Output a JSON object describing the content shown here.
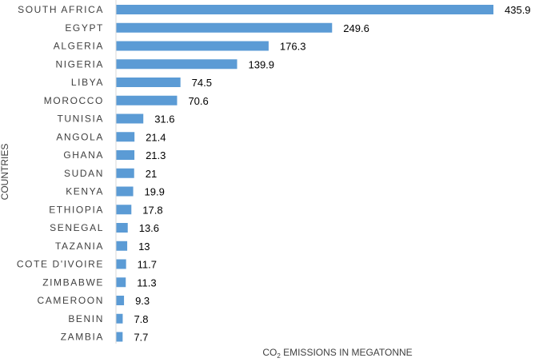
{
  "chart_data": {
    "type": "bar",
    "orientation": "horizontal",
    "categories": [
      "SOUTH AFRICA",
      "EGYPT",
      "ALGERIA",
      "NIGERIA",
      "LIBYA",
      "MOROCCO",
      "TUNISIA",
      "ANGOLA",
      "GHANA",
      "SUDAN",
      "KENYA",
      "ETHIOPIA",
      "SENEGAL",
      "TAZANIA",
      "COTE D'IVOIRE",
      "ZIMBABWE",
      "CAMEROON",
      "BENIN",
      "ZAMBIA"
    ],
    "values": [
      435.9,
      249.6,
      176.3,
      139.9,
      74.5,
      70.6,
      31.6,
      21.4,
      21.3,
      21,
      19.9,
      17.8,
      13.6,
      13,
      11.7,
      11.3,
      9.3,
      7.8,
      7.7
    ],
    "value_labels": [
      "435.9",
      "249.6",
      "176.3",
      "139.9",
      "74.5",
      "70.6",
      "31.6",
      "21.4",
      "21.3",
      "21",
      "19.9",
      "17.8",
      "13.6",
      "13",
      "11.7",
      "11.3",
      "9.3",
      "7.8",
      "7.7"
    ],
    "xlabel": {
      "main": "CO",
      "subscript": "2",
      "rest": " EMISSIONS IN MEGATONNE"
    },
    "ylabel": "COUNTRIES",
    "xlim": [
      0,
      500
    ],
    "grid": false,
    "bar_color": "#5B9BD5",
    "axis_color": "#D9D9D9"
  }
}
